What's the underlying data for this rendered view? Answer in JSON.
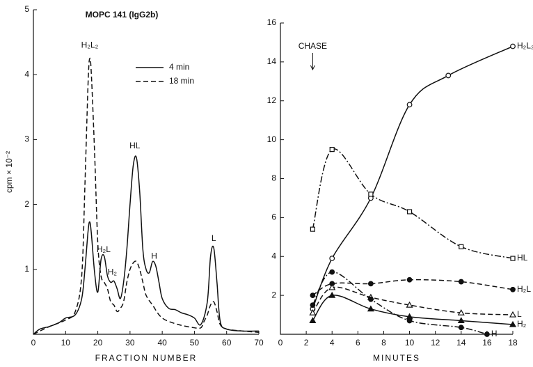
{
  "chart_data": [
    {
      "type": "line",
      "title": "MOPC 141 (IgG2b)",
      "x_label": "FRACTION NUMBER",
      "y_label": "cpm × 10⁻²",
      "xlim": [
        0,
        70
      ],
      "ylim": [
        0,
        5
      ],
      "xticks": [
        0,
        10,
        20,
        30,
        40,
        50,
        60,
        70
      ],
      "yticks": [
        1,
        2,
        3,
        4,
        5
      ],
      "series": [
        {
          "name": "4 min",
          "color": "#111111",
          "dash": "solid",
          "x": [
            0,
            2,
            5,
            8,
            10,
            13,
            15,
            16,
            17,
            17.5,
            18,
            19,
            20,
            21,
            22,
            23,
            24,
            25,
            26,
            27,
            28,
            29,
            30,
            31,
            32,
            33,
            34,
            35,
            36,
            37,
            38,
            39,
            40,
            42,
            44,
            46,
            48,
            50,
            52,
            54,
            55,
            56,
            57,
            58,
            60,
            65,
            70
          ],
          "values": [
            0,
            0.08,
            0.12,
            0.18,
            0.25,
            0.3,
            0.55,
            1.0,
            1.6,
            1.73,
            1.55,
            0.95,
            0.65,
            1.15,
            1.2,
            0.9,
            0.8,
            0.82,
            0.7,
            0.55,
            0.8,
            1.3,
            2.0,
            2.6,
            2.72,
            2.2,
            1.3,
            1.0,
            0.95,
            1.12,
            1.05,
            0.8,
            0.55,
            0.4,
            0.38,
            0.33,
            0.3,
            0.25,
            0.15,
            0.5,
            1.2,
            1.33,
            0.8,
            0.2,
            0.08,
            0.05,
            0.05
          ]
        },
        {
          "name": "18 min",
          "color": "#111111",
          "dash": "dashed",
          "x": [
            0,
            5,
            10,
            13,
            15,
            16,
            17,
            17.5,
            18,
            19,
            20,
            21,
            22,
            23,
            24,
            25,
            26,
            27,
            28,
            29,
            30,
            31,
            32,
            33,
            34,
            35,
            37,
            40,
            45,
            50,
            52,
            53,
            54,
            55,
            56,
            57,
            58,
            60,
            65,
            70
          ],
          "values": [
            0,
            0.12,
            0.22,
            0.35,
            0.9,
            2.3,
            3.9,
            4.25,
            4.0,
            2.8,
            1.4,
            0.9,
            0.8,
            0.7,
            0.5,
            0.45,
            0.35,
            0.4,
            0.5,
            0.8,
            1.0,
            1.1,
            1.12,
            1.0,
            0.8,
            0.6,
            0.45,
            0.25,
            0.15,
            0.1,
            0.1,
            0.2,
            0.3,
            0.45,
            0.5,
            0.35,
            0.15,
            0.08,
            0.05,
            0.03
          ]
        }
      ],
      "annotations": [
        "H₂L₂",
        "H₂L",
        "H₂",
        "HL",
        "H",
        "L"
      ]
    },
    {
      "type": "line",
      "x_label": "MINUTES",
      "annotation": "CHASE",
      "xlim": [
        0,
        18
      ],
      "ylim": [
        0,
        16
      ],
      "xticks": [
        0,
        2,
        4,
        6,
        8,
        10,
        12,
        14,
        16,
        18
      ],
      "yticks": [
        2,
        4,
        6,
        8,
        10,
        12,
        14,
        16
      ],
      "series": [
        {
          "name": "H₂L₂",
          "color": "#111111",
          "dash": "solid",
          "marker": "circle-open",
          "x": [
            2.5,
            4,
            7,
            10,
            13,
            18
          ],
          "values": [
            1.3,
            3.9,
            7.0,
            11.8,
            13.3,
            14.8
          ]
        },
        {
          "name": "HL",
          "color": "#111111",
          "dash": "dashdot",
          "marker": "square-open",
          "x": [
            2.5,
            4,
            7,
            10,
            14,
            18
          ],
          "values": [
            5.4,
            9.5,
            7.2,
            6.3,
            4.5,
            3.9
          ]
        },
        {
          "name": "H₂L",
          "color": "#111111",
          "dash": "dashed",
          "marker": "circle",
          "x": [
            2.5,
            4,
            7,
            10,
            14,
            18
          ],
          "values": [
            2.0,
            2.6,
            2.6,
            2.8,
            2.7,
            2.3
          ]
        },
        {
          "name": "L",
          "color": "#111111",
          "dash": "dashed",
          "marker": "triangle-open",
          "x": [
            2.5,
            4,
            7,
            10,
            14,
            18
          ],
          "values": [
            1.1,
            2.4,
            1.9,
            1.5,
            1.1,
            1.0
          ]
        },
        {
          "name": "H₂",
          "color": "#111111",
          "dash": "solid",
          "marker": "triangle",
          "x": [
            2.5,
            4,
            7,
            10,
            14,
            18
          ],
          "values": [
            0.7,
            2.0,
            1.3,
            0.9,
            0.7,
            0.5
          ]
        },
        {
          "name": "H",
          "color": "#111111",
          "dash": "dashdot",
          "marker": "circle",
          "x": [
            2.5,
            4,
            7,
            10,
            14,
            16
          ],
          "values": [
            1.5,
            3.2,
            1.8,
            0.7,
            0.35,
            0
          ]
        }
      ]
    }
  ]
}
